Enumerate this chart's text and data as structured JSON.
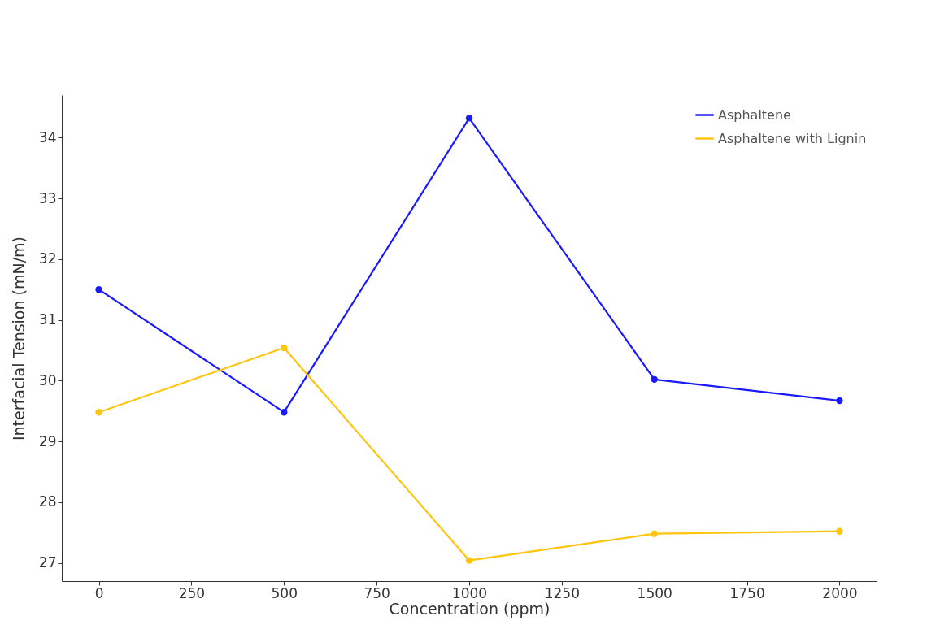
{
  "chart_data": {
    "type": "line",
    "xlabel": "Concentration (ppm)",
    "ylabel": "Interfacial Tension (mN/m)",
    "x": [
      0,
      500,
      1000,
      1500,
      2000
    ],
    "series": [
      {
        "name": "Asphaltene",
        "color": "#1a1aff",
        "values": [
          31.5,
          29.48,
          34.32,
          30.02,
          29.67
        ]
      },
      {
        "name": "Asphaltene with Lignin",
        "color": "#ffc40c",
        "values": [
          29.48,
          30.54,
          27.04,
          27.48,
          27.52
        ]
      }
    ],
    "xlim": [
      -100,
      2100
    ],
    "ylim": [
      26.7,
      34.7
    ],
    "xticks": [
      0,
      250,
      500,
      750,
      1000,
      1250,
      1500,
      1750,
      2000
    ],
    "yticks": [
      27,
      28,
      29,
      30,
      31,
      32,
      33,
      34
    ],
    "legend": "top right",
    "marker": "circle",
    "line_style": "solid",
    "grid": false
  }
}
